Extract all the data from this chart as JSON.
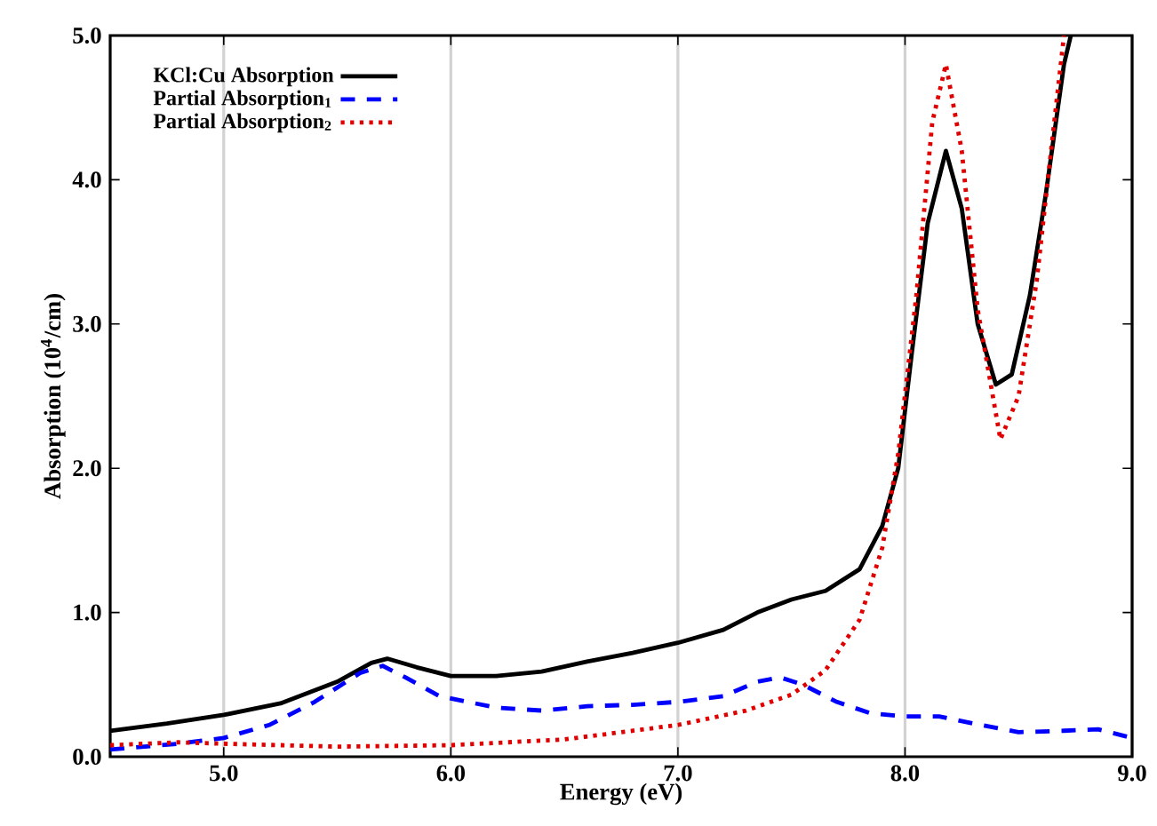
{
  "chart_data": {
    "type": "line",
    "xlabel": "Energy (eV)",
    "ylabel": "Absorption (10$^{4}$/cm)",
    "xlim": [
      4.5,
      9.0
    ],
    "ylim": [
      0,
      5.0
    ],
    "xticks": [
      {
        "value": 5.0,
        "label": "5.0"
      },
      {
        "value": 6.0,
        "label": "6.0"
      },
      {
        "value": 7.0,
        "label": "7.0"
      },
      {
        "value": 8.0,
        "label": "8.0"
      },
      {
        "value": 9.0,
        "label": "9.0"
      }
    ],
    "yticks": [
      {
        "value": 0,
        "label": "0.0"
      },
      {
        "value": 1.0,
        "label": "1.0"
      },
      {
        "value": 2.0,
        "label": "2.0"
      },
      {
        "value": 3.0,
        "label": "3.0"
      },
      {
        "value": 4.0,
        "label": "4.0"
      },
      {
        "value": 5.0,
        "label": "5.0"
      }
    ],
    "grid": "x",
    "legend": "top left",
    "marker": "none",
    "series": [
      {
        "name": "KCl:Cu Absorption",
        "color": "#000000",
        "line_style": "solid",
        "x": [
          4.5,
          4.75,
          5.0,
          5.25,
          5.5,
          5.65,
          5.72,
          5.85,
          6.0,
          6.2,
          6.4,
          6.6,
          6.8,
          7.0,
          7.2,
          7.35,
          7.5,
          7.65,
          7.8,
          7.9,
          7.97,
          8.03,
          8.1,
          8.18,
          8.25,
          8.32,
          8.4,
          8.47,
          8.55,
          8.62,
          8.7,
          8.73
        ],
        "values": [
          0.18,
          0.23,
          0.29,
          0.37,
          0.52,
          0.65,
          0.68,
          0.62,
          0.56,
          0.56,
          0.59,
          0.66,
          0.72,
          0.79,
          0.88,
          1.0,
          1.09,
          1.15,
          1.3,
          1.6,
          2.0,
          2.8,
          3.7,
          4.2,
          3.8,
          3.0,
          2.58,
          2.65,
          3.2,
          3.9,
          4.8,
          5.0
        ]
      },
      {
        "name": "Partial Absorption$_{1}$",
        "color": "#0000ff",
        "line_style": "dashed",
        "x": [
          4.5,
          4.8,
          5.0,
          5.2,
          5.4,
          5.6,
          5.7,
          5.8,
          5.95,
          6.2,
          6.4,
          6.6,
          6.8,
          7.0,
          7.2,
          7.35,
          7.45,
          7.55,
          7.7,
          7.85,
          8.0,
          8.15,
          8.3,
          8.5,
          8.7,
          8.85,
          9.0
        ],
        "values": [
          0.05,
          0.09,
          0.13,
          0.22,
          0.38,
          0.58,
          0.63,
          0.55,
          0.42,
          0.34,
          0.32,
          0.35,
          0.36,
          0.38,
          0.42,
          0.52,
          0.55,
          0.5,
          0.38,
          0.3,
          0.28,
          0.28,
          0.23,
          0.17,
          0.18,
          0.19,
          0.13
        ]
      },
      {
        "name": "Partial Absorption$_{2}$",
        "color": "#e00000",
        "line_style": "dotted",
        "x": [
          4.5,
          4.8,
          5.0,
          5.5,
          6.0,
          6.5,
          7.0,
          7.3,
          7.5,
          7.65,
          7.8,
          7.9,
          7.97,
          8.05,
          8.12,
          8.18,
          8.25,
          8.32,
          8.42,
          8.5,
          8.58,
          8.65,
          8.7
        ],
        "values": [
          0.08,
          0.1,
          0.09,
          0.07,
          0.08,
          0.12,
          0.22,
          0.32,
          0.43,
          0.6,
          0.95,
          1.45,
          2.1,
          3.2,
          4.4,
          4.8,
          4.2,
          3.1,
          2.2,
          2.5,
          3.3,
          4.3,
          5.0
        ]
      }
    ]
  }
}
